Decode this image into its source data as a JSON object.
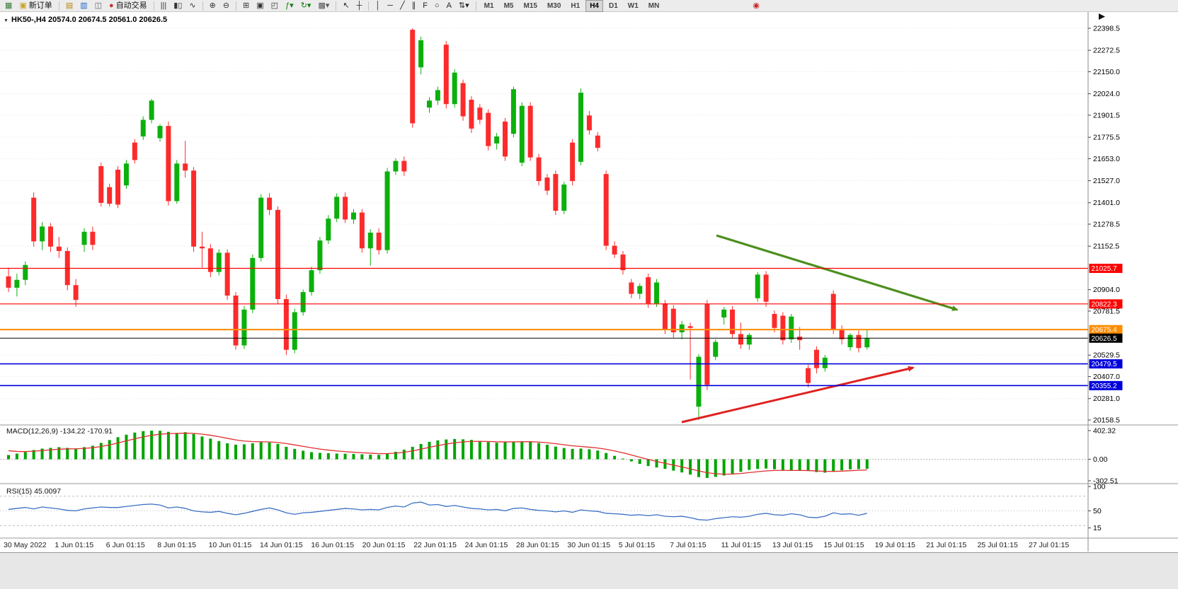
{
  "toolbar": {
    "items": [
      {
        "t": "icon",
        "name": "new-chart-icon",
        "glyph": "▦",
        "color": "#3b7a3b"
      },
      {
        "t": "btn",
        "name": "new-order-button",
        "glyph": "▣",
        "color": "#caa226",
        "label": "新订单"
      },
      {
        "t": "sep"
      },
      {
        "t": "icon",
        "name": "profiles-icon",
        "glyph": "▤",
        "color": "#b8860b"
      },
      {
        "t": "icon",
        "name": "market-watch-icon",
        "glyph": "▥",
        "color": "#1565c0"
      },
      {
        "t": "icon",
        "name": "data-window-icon",
        "glyph": "◫",
        "color": "#666666"
      },
      {
        "t": "btn",
        "name": "autotrading-button",
        "glyph": "●",
        "color": "#cc3333",
        "label": "自动交易"
      },
      {
        "t": "sep"
      },
      {
        "t": "icon",
        "name": "ohlc-bars-icon",
        "glyph": "|||",
        "color": "#333333"
      },
      {
        "t": "icon",
        "name": "candlesticks-icon",
        "glyph": "▮▯",
        "color": "#333333"
      },
      {
        "t": "icon",
        "name": "line-chart-icon",
        "glyph": "∿",
        "color": "#333333"
      },
      {
        "t": "sep"
      },
      {
        "t": "icon",
        "name": "zoom-in-icon",
        "glyph": "⊕",
        "color": "#333333"
      },
      {
        "t": "icon",
        "name": "zoom-out-icon",
        "glyph": "⊖",
        "color": "#333333"
      },
      {
        "t": "sep"
      },
      {
        "t": "icon",
        "name": "tile-windows-icon",
        "glyph": "⊞",
        "color": "#333333"
      },
      {
        "t": "icon",
        "name": "cascade-windows-icon",
        "glyph": "▣",
        "color": "#333333"
      },
      {
        "t": "icon",
        "name": "arrange-windows-icon",
        "glyph": "◰",
        "color": "#333333"
      },
      {
        "t": "icon",
        "name": "add-indicator-icon",
        "glyph": "ƒ▾",
        "color": "#0a7a0a"
      },
      {
        "t": "icon",
        "name": "refresh-icon",
        "glyph": "↻▾",
        "color": "#0a7a0a"
      },
      {
        "t": "icon",
        "name": "snapshot-icon",
        "glyph": "▩▾",
        "color": "#555555"
      },
      {
        "t": "sep"
      },
      {
        "t": "icon",
        "name": "cursor-icon",
        "glyph": "↖",
        "color": "#222222"
      },
      {
        "t": "icon",
        "name": "crosshair-icon",
        "glyph": "┼",
        "color": "#222222"
      },
      {
        "t": "sep"
      },
      {
        "t": "icon",
        "name": "vertical-line-icon",
        "glyph": "│",
        "color": "#222222"
      },
      {
        "t": "icon",
        "name": "horizontal-line-icon",
        "glyph": "─",
        "color": "#222222"
      },
      {
        "t": "icon",
        "name": "trendline-icon",
        "glyph": "╱",
        "color": "#222222"
      },
      {
        "t": "icon",
        "name": "equidistant-channel-icon",
        "glyph": "∥",
        "color": "#222222"
      },
      {
        "t": "icon",
        "name": "fibonacci-icon",
        "glyph": "F",
        "color": "#222222"
      },
      {
        "t": "icon",
        "name": "shapes-icon",
        "glyph": "○",
        "color": "#222222"
      },
      {
        "t": "icon",
        "name": "text-label-icon",
        "glyph": "A",
        "color": "#222222"
      },
      {
        "t": "icon",
        "name": "arrows-tool-icon",
        "glyph": "⇅▾",
        "color": "#222222"
      },
      {
        "t": "sep"
      },
      {
        "t": "tf",
        "name": "timeframe-m1",
        "label": "M1"
      },
      {
        "t": "tf",
        "name": "timeframe-m5",
        "label": "M5"
      },
      {
        "t": "tf",
        "name": "timeframe-m15",
        "label": "M15"
      },
      {
        "t": "tf",
        "name": "timeframe-m30",
        "label": "M30"
      },
      {
        "t": "tf",
        "name": "timeframe-h1",
        "label": "H1"
      },
      {
        "t": "tf",
        "name": "timeframe-h4",
        "label": "H4",
        "active": true
      },
      {
        "t": "tf",
        "name": "timeframe-d1",
        "label": "D1"
      },
      {
        "t": "tf",
        "name": "timeframe-w1",
        "label": "W1"
      },
      {
        "t": "tf",
        "name": "timeframe-mn",
        "label": "MN"
      },
      {
        "t": "gap",
        "w": 120
      },
      {
        "t": "icon",
        "name": "record-icon",
        "glyph": "◉",
        "color": "#cc2222"
      }
    ]
  },
  "chart": {
    "title": "HK50-,H4  20574.0 20674.5 20561.0 20626.5",
    "symbol": "HK50-",
    "timeframe": "H4"
  },
  "chart_data": {
    "type": "candlestick",
    "symbol": "HK50-",
    "timeframe": "H4",
    "current_bar": {
      "open": 20574.0,
      "high": 20674.5,
      "low": 20561.0,
      "close": 20626.5
    },
    "price_axis_ticks": [
      22398.5,
      22272.5,
      22150.0,
      22024.0,
      21901.5,
      21775.5,
      21653.0,
      21527.0,
      21401.0,
      21278.5,
      21152.5,
      20904.0,
      20781.5,
      20529.5,
      20407.0,
      20281.0,
      20158.5
    ],
    "levels": [
      {
        "name": "resistance-line-1",
        "price": 21025.7,
        "label": "21025.7",
        "color": "#FF0000",
        "width": 1.2
      },
      {
        "name": "resistance-line-2",
        "price": 20822.3,
        "label": "20822.3",
        "color": "#FF0000",
        "width": 1.2
      },
      {
        "name": "pivot-line",
        "price": 20675.4,
        "label": "20675.4",
        "color": "#FF8C00",
        "width": 2
      },
      {
        "name": "bid-price-line",
        "price": 20626.5,
        "label": "20626.5",
        "color": "#000000",
        "width": 1
      },
      {
        "name": "support-line-1",
        "price": 20479.5,
        "label": "20479.5",
        "color": "#0000DD",
        "width": 1.6
      },
      {
        "name": "support-line-2",
        "price": 20355.2,
        "label": "20355.2",
        "color": "#0000DD",
        "width": 1.6
      }
    ],
    "arrows": [
      {
        "name": "downtrend-arrow",
        "color": "#4E8F1F",
        "from": [
          1012,
          333
        ],
        "to": [
          1352,
          438
        ],
        "width": 3.2
      },
      {
        "name": "uptrend-arrow",
        "color": "#E02020",
        "from": [
          963,
          597
        ],
        "to": [
          1290,
          520
        ],
        "width": 3
      }
    ],
    "time_axis_labels": [
      "30 May 2022",
      "1 Jun 01:15",
      "6 Jun 01:15",
      "8 Jun 01:15",
      "10 Jun 01:15",
      "14 Jun 01:15",
      "16 Jun 01:15",
      "20 Jun 01:15",
      "22 Jun 01:15",
      "24 Jun 01:15",
      "28 Jun 01:15",
      "30 Jun 01:15",
      "5 Jul 01:15",
      "7 Jul 01:15",
      "11 Jul 01:15",
      "13 Jul 01:15",
      "15 Jul 01:15",
      "19 Jul 01:15",
      "21 Jul 01:15",
      "25 Jul 01:15",
      "27 Jul 01:15"
    ],
    "candles": [
      [
        20980,
        21030,
        20890,
        20915
      ],
      [
        20915,
        20995,
        20865,
        20960
      ],
      [
        20960,
        21065,
        20930,
        21045
      ],
      [
        21430,
        21460,
        21150,
        21180
      ],
      [
        21180,
        21290,
        21130,
        21265
      ],
      [
        21265,
        21285,
        21120,
        21150
      ],
      [
        21150,
        21205,
        21085,
        21125
      ],
      [
        21125,
        21145,
        20900,
        20930
      ],
      [
        20930,
        20965,
        20805,
        20845
      ],
      [
        21160,
        21255,
        21120,
        21235
      ],
      [
        21235,
        21265,
        21130,
        21160
      ],
      [
        21610,
        21630,
        21380,
        21400
      ],
      [
        21490,
        21510,
        21380,
        21395
      ],
      [
        21590,
        21610,
        21370,
        21390
      ],
      [
        21500,
        21645,
        21480,
        21625
      ],
      [
        21745,
        21765,
        21625,
        21645
      ],
      [
        21780,
        21895,
        21760,
        21875
      ],
      [
        21875,
        21995,
        21855,
        21985
      ],
      [
        21770,
        21850,
        21750,
        21840
      ],
      [
        21840,
        21865,
        21385,
        21410
      ],
      [
        21410,
        21645,
        21395,
        21625
      ],
      [
        21625,
        21755,
        21545,
        21585
      ],
      [
        21585,
        21605,
        21120,
        21150
      ],
      [
        21150,
        21235,
        21030,
        21140
      ],
      [
        21140,
        21165,
        20975,
        21005
      ],
      [
        21005,
        21135,
        20985,
        21115
      ],
      [
        21115,
        21135,
        20845,
        20870
      ],
      [
        20870,
        20890,
        20560,
        20585
      ],
      [
        20585,
        20810,
        20565,
        20790
      ],
      [
        20790,
        21105,
        20770,
        21085
      ],
      [
        21085,
        21450,
        21065,
        21430
      ],
      [
        21430,
        21455,
        21330,
        21360
      ],
      [
        21360,
        21380,
        20820,
        20850
      ],
      [
        20850,
        20875,
        20530,
        20560
      ],
      [
        20560,
        20795,
        20540,
        20775
      ],
      [
        20775,
        20905,
        20755,
        20890
      ],
      [
        20890,
        21035,
        20870,
        21015
      ],
      [
        21015,
        21205,
        20995,
        21185
      ],
      [
        21185,
        21330,
        21165,
        21310
      ],
      [
        21310,
        21455,
        21290,
        21435
      ],
      [
        21435,
        21460,
        21285,
        21305
      ],
      [
        21305,
        21365,
        21280,
        21345
      ],
      [
        21345,
        21365,
        21115,
        21140
      ],
      [
        21140,
        21250,
        21040,
        21230
      ],
      [
        21230,
        21255,
        21105,
        21130
      ],
      [
        21130,
        21600,
        21110,
        21580
      ],
      [
        21580,
        21655,
        21560,
        21640
      ],
      [
        21640,
        21665,
        21555,
        21580
      ],
      [
        22390,
        22398.5,
        21830,
        21855
      ],
      [
        22175,
        22350,
        22135,
        22330
      ],
      [
        21945,
        22005,
        21915,
        21985
      ],
      [
        21985,
        22065,
        21960,
        22045
      ],
      [
        22305,
        22325,
        21940,
        21965
      ],
      [
        21965,
        22165,
        21945,
        22145
      ],
      [
        22085,
        22105,
        21870,
        21895
      ],
      [
        21990,
        22010,
        21800,
        21825
      ],
      [
        21945,
        21965,
        21850,
        21875
      ],
      [
        21915,
        21935,
        21700,
        21725
      ],
      [
        21740,
        21800,
        21705,
        21780
      ],
      [
        21865,
        21885,
        21640,
        21665
      ],
      [
        21795,
        22065,
        21775,
        22050
      ],
      [
        21630,
        21975,
        21610,
        21955
      ],
      [
        21955,
        21975,
        21640,
        21660
      ],
      [
        21660,
        21680,
        21500,
        21525
      ],
      [
        21545,
        21565,
        21445,
        21470
      ],
      [
        21565,
        21585,
        21330,
        21355
      ],
      [
        21355,
        21520,
        21335,
        21505
      ],
      [
        21745,
        21765,
        21500,
        21525
      ],
      [
        21635,
        22055,
        21615,
        22030
      ],
      [
        21900,
        21925,
        21790,
        21815
      ],
      [
        21785,
        21805,
        21695,
        21715
      ],
      [
        21565,
        21585,
        21130,
        21155
      ],
      [
        21155,
        21180,
        21085,
        21105
      ],
      [
        21105,
        21125,
        20990,
        21015
      ],
      [
        20945,
        20965,
        20855,
        20880
      ],
      [
        20880,
        20940,
        20850,
        20925
      ],
      [
        20975,
        20995,
        20800,
        20825
      ],
      [
        20825,
        20965,
        20805,
        20945
      ],
      [
        20825,
        20845,
        20650,
        20675
      ],
      [
        20795,
        20815,
        20630,
        20660
      ],
      [
        20660,
        20725,
        20620,
        20705
      ],
      [
        20695,
        20715,
        20390,
        20685
      ],
      [
        20235,
        20535,
        20158.5,
        20520
      ],
      [
        20820,
        20845,
        20330,
        20360
      ],
      [
        20520,
        20620,
        20500,
        20605
      ],
      [
        20745,
        20805,
        20705,
        20790
      ],
      [
        20790,
        20810,
        20625,
        20650
      ],
      [
        20650,
        20715,
        20565,
        20590
      ],
      [
        20590,
        20655,
        20560,
        20645
      ],
      [
        20855,
        21005,
        20835,
        20990
      ],
      [
        20990,
        21010,
        20805,
        20835
      ],
      [
        20765,
        20785,
        20660,
        20685
      ],
      [
        20755,
        20775,
        20590,
        20615
      ],
      [
        20620,
        20765,
        20600,
        20750
      ],
      [
        20635,
        20690,
        20560,
        20615
      ],
      [
        20455,
        20475,
        20345,
        20370
      ],
      [
        20560,
        20580,
        20425,
        20455
      ],
      [
        20455,
        20530,
        20435,
        20515
      ],
      [
        20880,
        20900,
        20650,
        20675
      ],
      [
        20675,
        20700,
        20590,
        20620
      ],
      [
        20575,
        20655,
        20555,
        20645
      ],
      [
        20645,
        20670,
        20545,
        20570
      ],
      [
        20574,
        20674.5,
        20561,
        20626.5
      ]
    ],
    "indicators": {
      "macd": {
        "label": "MACD(12,26,9) -134.22 -170.91",
        "params": "12,26,9",
        "value": -134.22,
        "signal_value": -170.91,
        "axis_labels": [
          "402.32",
          "0.00",
          "-302.51"
        ],
        "axis_values": [
          402.32,
          0.0,
          -302.51
        ],
        "histogram": [
          60,
          80,
          100,
          130,
          150,
          160,
          170,
          160,
          150,
          170,
          190,
          230,
          270,
          310,
          345,
          375,
          395,
          402,
          400,
          385,
          370,
          380,
          355,
          320,
          290,
          255,
          225,
          205,
          210,
          225,
          240,
          235,
          215,
          175,
          145,
          120,
          100,
          90,
          85,
          80,
          78,
          75,
          70,
          65,
          62,
          80,
          105,
          135,
          175,
          215,
          245,
          265,
          278,
          285,
          280,
          272,
          258,
          242,
          232,
          240,
          248,
          252,
          246,
          228,
          205,
          178,
          158,
          145,
          150,
          140,
          122,
          88,
          48,
          10,
          -30,
          -65,
          -95,
          -115,
          -135,
          -160,
          -185,
          -215,
          -250,
          -262,
          -248,
          -228,
          -202,
          -176,
          -150,
          -136,
          -130,
          -140,
          -152,
          -160,
          -155,
          -165,
          -180,
          -188,
          -172,
          -155,
          -142,
          -138,
          -134.22
        ]
      },
      "rsi": {
        "label": "RSI(15) 45.0097",
        "period": 15,
        "value": 45.0097,
        "axis_labels": [
          "100",
          "50",
          "15"
        ],
        "axis_values": [
          100,
          50,
          15
        ],
        "level_lines": [
          80,
          50,
          20
        ],
        "values": [
          53,
          55,
          57,
          54,
          58,
          56,
          54,
          51,
          50,
          54,
          56,
          58,
          57,
          57,
          59,
          61,
          63,
          64,
          62,
          56,
          58,
          55,
          50,
          48,
          47,
          49,
          45,
          42,
          45,
          49,
          53,
          56,
          52,
          46,
          43,
          46,
          47,
          49,
          51,
          53,
          55,
          54,
          52,
          53,
          52,
          57,
          60,
          58,
          66,
          68,
          62,
          63,
          59,
          61,
          58,
          55,
          54,
          52,
          53,
          50,
          55,
          56,
          53,
          51,
          50,
          48,
          50,
          47,
          52,
          50,
          49,
          45,
          44,
          43,
          41,
          42,
          40,
          42,
          39,
          38,
          39,
          36,
          32,
          31,
          34,
          36,
          38,
          37,
          39,
          43,
          45,
          42,
          41,
          44,
          42,
          37,
          36,
          39,
          46,
          43,
          44,
          41,
          45.0097
        ]
      }
    },
    "colors": {
      "up": "#0CB00C",
      "down": "#FC2B2B",
      "macd_hist": "#00A400",
      "macd_signal": "#E03030",
      "rsi_line": "#3A6FC4",
      "grid": "#E3E3E3"
    }
  }
}
